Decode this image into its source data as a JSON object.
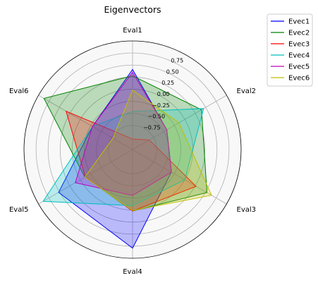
{
  "chart_data": {
    "type": "radar",
    "title": "Eigenvectors",
    "categories": [
      "Eval1",
      "Eval2",
      "Eval3",
      "Eval4",
      "Eval5",
      "Eval6"
    ],
    "rlim": [
      -1.25,
      1.0
    ],
    "rticks": [
      -0.75,
      -0.5,
      -0.25,
      0.0,
      0.25,
      0.5,
      0.75
    ],
    "rtick_labels": [
      "−0.75",
      "−0.50",
      "−0.25",
      "0.00",
      "0.25",
      "0.50",
      "0.75"
    ],
    "grid": true,
    "legend_position": "upper-right-outside",
    "series": [
      {
        "name": "Evec1",
        "color": "#0000ff",
        "values": [
          0.41,
          -0.43,
          -0.32,
          0.79,
          0.52,
          -0.29
        ]
      },
      {
        "name": "Evec2",
        "color": "#008000",
        "values": [
          0.28,
          0.4,
          0.53,
          0.02,
          -0.11,
          0.87
        ]
      },
      {
        "name": "Evec3",
        "color": "#ff0000",
        "values": [
          -1.03,
          -0.85,
          0.27,
          0.02,
          -0.12,
          0.34
        ]
      },
      {
        "name": "Evec4",
        "color": "#00bfbf",
        "values": [
          -0.46,
          0.45,
          0.0,
          -0.09,
          0.89,
          -0.29
        ]
      },
      {
        "name": "Evec5",
        "color": "#bf00bf",
        "values": [
          0.35,
          -0.43,
          -0.32,
          -0.3,
          0.12,
          -0.29
        ]
      },
      {
        "name": "Evec6",
        "color": "#bfbf00",
        "values": [
          -0.02,
          -0.14,
          0.64,
          0.01,
          -0.11,
          -0.78
        ]
      }
    ]
  }
}
